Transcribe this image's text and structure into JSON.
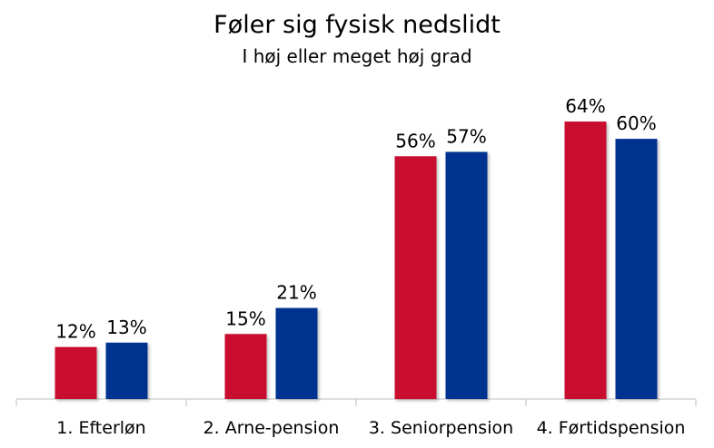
{
  "chart_data": {
    "type": "bar",
    "title": "Føler sig fysisk nedslidt",
    "subtitle": "I høj eller meget høj grad",
    "categories": [
      "1. Efterløn",
      "2. Arne-pension",
      "3. Seniorpension",
      "4. Førtidspension"
    ],
    "series": [
      {
        "values": [
          12,
          15,
          56,
          64
        ],
        "labels": [
          "12%",
          "15%",
          "56%",
          "64%"
        ],
        "color": "#C8102E"
      },
      {
        "values": [
          13,
          21,
          57,
          60
        ],
        "labels": [
          "13%",
          "21%",
          "57%",
          "60%"
        ],
        "color": "#00308F"
      }
    ],
    "ylim": [
      0,
      70
    ],
    "grid": false,
    "legend": "none"
  }
}
